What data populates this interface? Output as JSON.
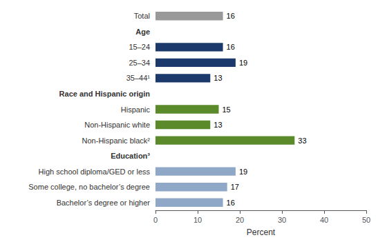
{
  "chart_data": {
    "type": "bar",
    "orientation": "horizontal",
    "categories": [
      "Total",
      "Age",
      "15–24",
      "25–34",
      "35–44¹",
      "Race and Hispanic origin",
      "Hispanic",
      "Non-Hispanic white",
      "Non-Hispanic black²",
      "Education³",
      "High school diploma/GED or less",
      "Some college, no bachelor’s degree",
      "Bachelor’s degree or higher"
    ],
    "values": [
      16,
      null,
      16,
      19,
      13,
      null,
      15,
      13,
      33,
      null,
      19,
      17,
      16
    ],
    "colors": [
      "#999999",
      null,
      "#1b3a6b",
      "#1b3a6b",
      "#1b3a6b",
      null,
      "#5a8a2a",
      "#5a8a2a",
      "#5a8a2a",
      null,
      "#8fa8c8",
      "#8fa8c8",
      "#8fa8c8"
    ],
    "xlabel": "Percent",
    "xlim": [
      0,
      50
    ],
    "xticks": [
      0,
      10,
      20,
      30,
      40,
      50
    ],
    "data_labels": true,
    "grid": false
  }
}
